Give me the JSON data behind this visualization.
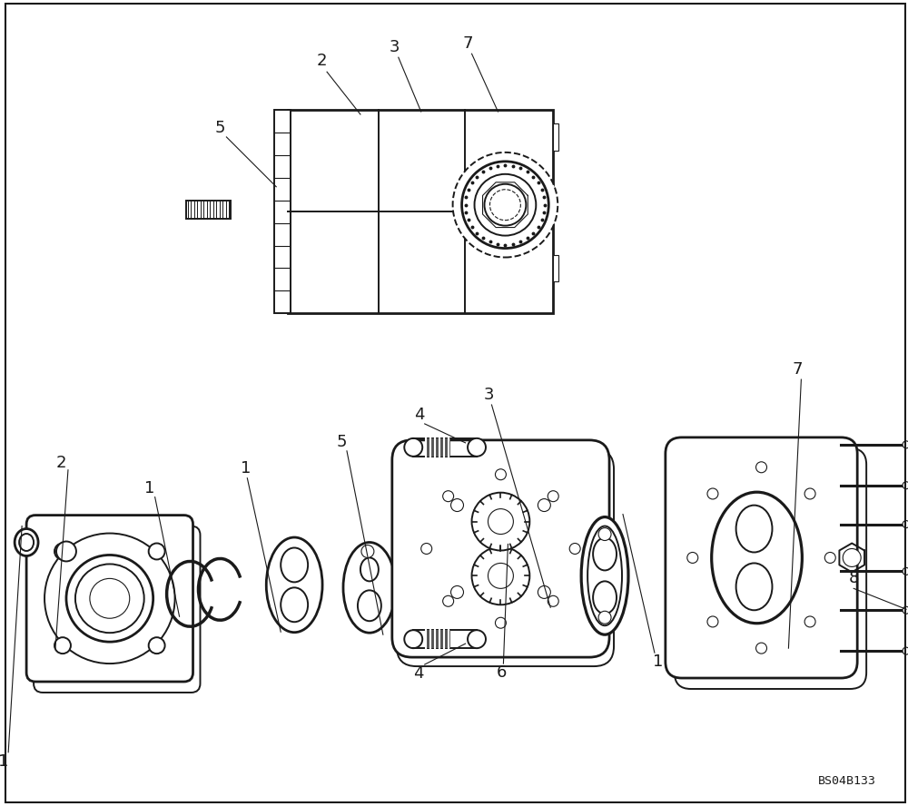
{
  "bg_color": "#ffffff",
  "line_color": "#1a1a1a",
  "watermark": "BS04B133",
  "lw": 1.4,
  "lw_thin": 0.8,
  "lw_thick": 2.0,
  "fs": 13
}
